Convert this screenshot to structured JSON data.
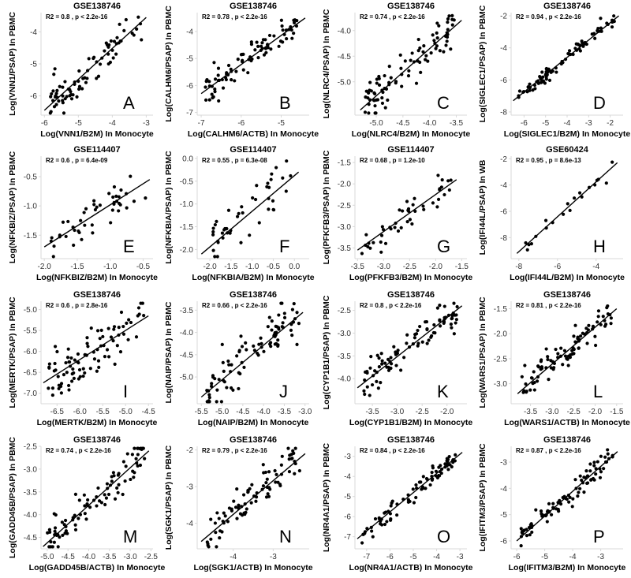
{
  "chart_data": [
    {
      "letter": "A",
      "type": "scatter",
      "title": "GSE138746",
      "stat": "R2 = 0.8   ,  p < 2.2e-16",
      "xlabel": "Log(VNN1/B2M) In Monocyte",
      "ylabel": "Log(VNN1/PSAP) In PBMC",
      "xlim": [
        -6.1,
        -2.8
      ],
      "ylim": [
        -6.6,
        -3.4
      ],
      "xticks": [
        -6,
        -5,
        -4,
        -3
      ],
      "yticks": [
        -6,
        -5,
        -4
      ],
      "fit": [
        [
          -6.0,
          -6.45
        ],
        [
          -3.0,
          -3.55
        ]
      ],
      "seed": 11,
      "n": 80,
      "noise": 0.28
    },
    {
      "letter": "B",
      "type": "scatter",
      "title": "GSE138746",
      "stat": "R2 = 0.78   ,  p < 2.2e-16",
      "xlabel": "Log(CALHM6/ACTB) In Monocyte",
      "ylabel": "Log(CALHM6/PSAP) In PBMC",
      "xlim": [
        -7.1,
        -4.3
      ],
      "ylim": [
        -7.1,
        -3.3
      ],
      "xticks": [
        -7,
        -6,
        -5
      ],
      "yticks": [
        -7,
        -6,
        -5,
        -4
      ],
      "fit": [
        [
          -7.0,
          -6.3
        ],
        [
          -4.4,
          -3.5
        ]
      ],
      "seed": 22,
      "n": 85,
      "noise": 0.25
    },
    {
      "letter": "C",
      "type": "scatter",
      "title": "GSE138746",
      "stat": "R2 = 0.74   ,  p < 2.2e-16",
      "xlabel": "Log(NLRC4/B2M) In Monocyte",
      "ylabel": "Log(NLRC4/PSAP) In PBMC",
      "xlim": [
        -5.4,
        -3.3
      ],
      "ylim": [
        -5.65,
        -3.65
      ],
      "xticks": [
        -5.0,
        -4.5,
        -4.0,
        -3.5
      ],
      "yticks": [
        -5.0,
        -4.5,
        -4.0
      ],
      "fit": [
        [
          -5.3,
          -5.55
        ],
        [
          -3.4,
          -3.8
        ]
      ],
      "seed": 33,
      "n": 90,
      "noise": 0.2
    },
    {
      "letter": "D",
      "type": "scatter",
      "title": "GSE138746",
      "stat": "R2 = 0.94   ,  p < 2.2e-16",
      "xlabel": "Log(SIGLEC1/B2M) In Monocyte",
      "ylabel": "Log(SIGLEC1/PSAP) In PBMC",
      "xlim": [
        -6.6,
        -1.4
      ],
      "ylim": [
        -8.2,
        -1.8
      ],
      "xticks": [
        -6,
        -5,
        -4,
        -3,
        -2
      ],
      "yticks": [
        -8,
        -6,
        -4,
        -2
      ],
      "fit": [
        [
          -6.5,
          -7.3
        ],
        [
          -1.6,
          -2.0
        ]
      ],
      "seed": 44,
      "n": 85,
      "noise": 0.22
    },
    {
      "letter": "E",
      "type": "scatter",
      "title": "GSE114407",
      "stat": "R2 = 0.6   ,  p = 6.4e-09",
      "xlabel": "Log(NFKBIZ/B2M) In Monocyte",
      "ylabel": "Log(NFKBIZ/PSAP) In PBMC",
      "xlim": [
        -2.05,
        -0.35
      ],
      "ylim": [
        -1.9,
        -0.15
      ],
      "xticks": [
        -2.0,
        -1.5,
        -1.0,
        -0.5
      ],
      "yticks": [
        -1.5,
        -1.0,
        -0.5
      ],
      "fit": [
        [
          -2.0,
          -1.7
        ],
        [
          -0.4,
          -0.55
        ]
      ],
      "seed": 55,
      "n": 45,
      "noise": 0.18
    },
    {
      "letter": "F",
      "type": "scatter",
      "title": "GSE114407",
      "stat": "R2 = 0.55   ,  p = 6.3e-08",
      "xlabel": "Log(NFKBIA/B2M) In Monocyte",
      "ylabel": "Log(NFKBIA/PSAP) In PBMC",
      "xlim": [
        -2.3,
        0.35
      ],
      "ylim": [
        -2.2,
        0.05
      ],
      "xticks": [
        -2.0,
        -1.5,
        -1.0,
        -0.5,
        0.0
      ],
      "yticks": [
        -2.0,
        -1.5,
        -1.0,
        -0.5,
        0.0
      ],
      "fit": [
        [
          -2.2,
          -2.1
        ],
        [
          0.1,
          -0.3
        ]
      ],
      "seed": 66,
      "n": 45,
      "noise": 0.28
    },
    {
      "letter": "G",
      "type": "scatter",
      "title": "GSE114407",
      "stat": "R2 = 0.68   ,  p = 1.2e-10",
      "xlabel": "Log(PFKFB3/B2M) In Monocyte",
      "ylabel": "Log(PFKFB3/PSAP) In PBMC",
      "xlim": [
        -3.55,
        -1.4
      ],
      "ylim": [
        -3.75,
        -1.35
      ],
      "xticks": [
        -3.5,
        -3.0,
        -2.5,
        -2.0,
        -1.5
      ],
      "yticks": [
        -3.5,
        -3.0,
        -2.5,
        -2.0,
        -1.5
      ],
      "fit": [
        [
          -3.5,
          -3.55
        ],
        [
          -1.6,
          -1.9
        ]
      ],
      "seed": 77,
      "n": 45,
      "noise": 0.2
    },
    {
      "letter": "H",
      "type": "scatter",
      "title": "GSE60424",
      "stat": "R2 = 0.95   ,  p = 8.6e-13",
      "xlabel": "Log(IFI44L/B2M) In Monocyte",
      "ylabel": "Log(IFI44L/PSAP) In WB",
      "xlim": [
        -8.4,
        -2.6
      ],
      "ylim": [
        -9.6,
        -1.8
      ],
      "xticks": [
        -8,
        -6,
        -4
      ],
      "yticks": [
        -8,
        -6,
        -4,
        -2
      ],
      "fit": [
        [
          -8.1,
          -9.2
        ],
        [
          -2.9,
          -2.3
        ]
      ],
      "seed": 88,
      "n": 20,
      "noise": 0.35
    },
    {
      "letter": "I",
      "type": "scatter",
      "title": "GSE138746",
      "stat": "R2 = 0.6   ,  p = 2.8e-16",
      "xlabel": "Log(MERTK/B2M) In Monocyte",
      "ylabel": "Log(MERTK/PSAP) In PBMC",
      "xlim": [
        -6.85,
        -4.4
      ],
      "ylim": [
        -7.25,
        -4.8
      ],
      "xticks": [
        -6.5,
        -6.0,
        -5.5,
        -5.0,
        -4.5
      ],
      "yticks": [
        -7.0,
        -6.5,
        -6.0,
        -5.5,
        -5.0
      ],
      "fit": [
        [
          -6.8,
          -6.75
        ],
        [
          -4.5,
          -5.15
        ]
      ],
      "seed": 99,
      "n": 90,
      "noise": 0.28
    },
    {
      "letter": "J",
      "type": "scatter",
      "title": "GSE138746",
      "stat": "R2 = 0.66   ,  p < 2.2e-16",
      "xlabel": "Log(NAIP/B2M) In Monocyte",
      "ylabel": "Log(NAIP/PSAP) In PBMC",
      "xlim": [
        -5.6,
        -2.9
      ],
      "ylim": [
        -5.6,
        -3.3
      ],
      "xticks": [
        -5.5,
        -5.0,
        -4.5,
        -4.0,
        -3.5,
        -3.0
      ],
      "yticks": [
        -5.0,
        -4.5,
        -4.0,
        -3.5
      ],
      "fit": [
        [
          -5.5,
          -5.45
        ],
        [
          -3.05,
          -3.55
        ]
      ],
      "seed": 111,
      "n": 90,
      "noise": 0.25
    },
    {
      "letter": "K",
      "type": "scatter",
      "title": "GSE138746",
      "stat": "R2 = 0.8   ,  p < 2.2e-16",
      "xlabel": "Log(CYP1B1/B2M) In Monocyte",
      "ylabel": "Log(CYP1B1/PSAP) In PBMC",
      "xlim": [
        -3.85,
        -1.6
      ],
      "ylim": [
        -4.55,
        -2.3
      ],
      "xticks": [
        -3.5,
        -3.0,
        -2.5,
        -2.0
      ],
      "yticks": [
        -4.0,
        -3.5,
        -3.0,
        -2.5
      ],
      "fit": [
        [
          -3.8,
          -4.2
        ],
        [
          -1.7,
          -2.4
        ]
      ],
      "seed": 122,
      "n": 90,
      "noise": 0.18
    },
    {
      "letter": "L",
      "type": "scatter",
      "title": "GSE138746",
      "stat": "R2 = 0.81   ,  p < 2.2e-16",
      "xlabel": "Log(WARS1/ACTB) In Monocyte",
      "ylabel": "Log(WARS1/PSAP) In PBMC",
      "xlim": [
        -3.95,
        -1.35
      ],
      "ylim": [
        -3.4,
        -1.35
      ],
      "xticks": [
        -3.5,
        -3.0,
        -2.5,
        -2.0,
        -1.5
      ],
      "yticks": [
        -3.0,
        -2.5,
        -2.0,
        -1.5
      ],
      "fit": [
        [
          -3.8,
          -3.2
        ],
        [
          -1.5,
          -1.5
        ]
      ],
      "seed": 133,
      "n": 90,
      "noise": 0.15
    },
    {
      "letter": "M",
      "type": "scatter",
      "title": "GSE138746",
      "stat": "R2 = 0.74   ,  p < 2.2e-16",
      "xlabel": "Log(GADD45B/ACTB) In Monocyte",
      "ylabel": "Log(GADD45B/PSAP) In PBMC",
      "xlim": [
        -5.15,
        -2.45
      ],
      "ylim": [
        -4.75,
        -2.5
      ],
      "xticks": [
        -5.0,
        -4.5,
        -4.0,
        -3.5,
        -3.0,
        -2.5
      ],
      "yticks": [
        -4.5,
        -4.0,
        -3.5,
        -3.0,
        -2.5
      ],
      "fit": [
        [
          -5.1,
          -4.7
        ],
        [
          -2.55,
          -2.6
        ]
      ],
      "seed": 144,
      "n": 90,
      "noise": 0.22
    },
    {
      "letter": "N",
      "type": "scatter",
      "title": "GSE138746",
      "stat": "R2 = 0.79   ,  p < 2.2e-16",
      "xlabel": "Log(SGK1/ACTB) In Monocyte",
      "ylabel": "Log(SGK1/PSAP) In PBMC",
      "xlim": [
        -4.9,
        -2.1
      ],
      "ylim": [
        -4.7,
        -1.9
      ],
      "xticks": [
        -4,
        -3
      ],
      "yticks": [
        -4,
        -3,
        -2
      ],
      "fit": [
        [
          -4.8,
          -4.5
        ],
        [
          -2.2,
          -2.1
        ]
      ],
      "seed": 155,
      "n": 85,
      "noise": 0.25
    },
    {
      "letter": "O",
      "type": "scatter",
      "title": "GSE138746",
      "stat": "R2 = 0.84   ,  p < 2.2e-16",
      "xlabel": "Log(NR4A1/ACTB) In Monocyte",
      "ylabel": "Log(NR4A1/PSAP) In PBMC",
      "xlim": [
        -7.5,
        -2.7
      ],
      "ylim": [
        -7.6,
        -2.5
      ],
      "xticks": [
        -7,
        -6,
        -5,
        -4,
        -3
      ],
      "yticks": [
        -7,
        -6,
        -5,
        -4,
        -3
      ],
      "fit": [
        [
          -7.4,
          -7.1
        ],
        [
          -2.9,
          -2.8
        ]
      ],
      "seed": 166,
      "n": 85,
      "noise": 0.3
    },
    {
      "letter": "P",
      "type": "scatter",
      "title": "GSE138746",
      "stat": "R2 = 0.87   ,  p < 2.2e-16",
      "xlabel": "Log(IFITM3/B2M) In Monocyte",
      "ylabel": "Log(IFITM3/PSAP) In PBMC",
      "xlim": [
        -6.2,
        -2.2
      ],
      "ylim": [
        -6.3,
        -2.4
      ],
      "xticks": [
        -6,
        -5,
        -4,
        -3
      ],
      "yticks": [
        -6,
        -5,
        -4,
        -3
      ],
      "fit": [
        [
          -6.0,
          -6.0
        ],
        [
          -2.4,
          -2.6
        ]
      ],
      "seed": 177,
      "n": 90,
      "noise": 0.22
    }
  ]
}
